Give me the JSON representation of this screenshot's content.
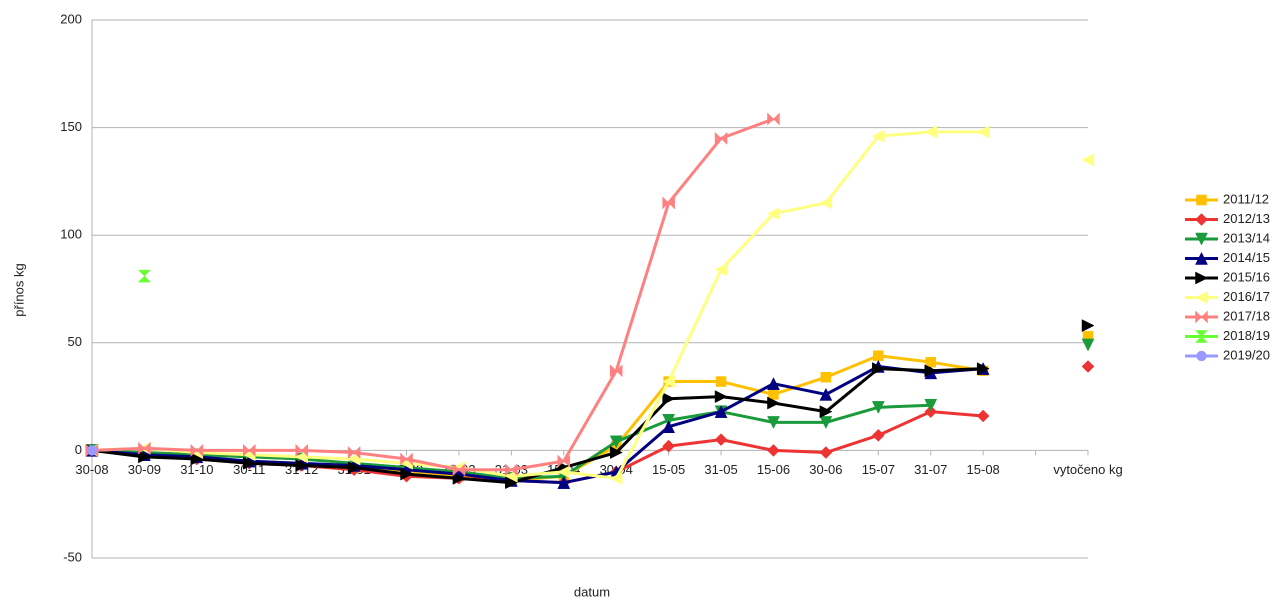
{
  "chart_data": {
    "type": "line",
    "x_label": "datum",
    "y_label": "přínos kg",
    "categories": [
      "30-08",
      "30-09",
      "31-10",
      "30-11",
      "31-12",
      "31-01",
      "28-02",
      "15-03",
      "31-03",
      "15-04",
      "30-04",
      "15-05",
      "31-05",
      "15-06",
      "30-06",
      "15-07",
      "31-07",
      "15-08",
      null,
      "vytočeno kg"
    ],
    "ylim": [
      -50,
      200
    ],
    "yticks": [
      -50,
      0,
      50,
      100,
      150,
      200
    ],
    "grid": true,
    "legend": "right",
    "series": [
      {
        "name": "2011/12",
        "color": "#ffc000",
        "marker": "square",
        "values": [
          0,
          -2,
          -3,
          -5,
          -6,
          -8,
          -10,
          -12,
          -14,
          -12,
          2,
          32,
          32,
          26,
          34,
          44,
          41,
          37,
          null,
          53
        ]
      },
      {
        "name": "2012/13",
        "color": "#ee3333",
        "marker": "diamond",
        "values": [
          0,
          -2,
          -4,
          -6,
          -7,
          -9,
          -12,
          -13,
          -14,
          -15,
          -10,
          2,
          5,
          0,
          -1,
          7,
          18,
          16,
          null,
          39
        ]
      },
      {
        "name": "2013/14",
        "color": "#1a9a3a",
        "marker": "triangle-down",
        "values": [
          0,
          -1,
          -2,
          -3,
          -4,
          -6,
          -8,
          -10,
          -13,
          -12,
          4,
          14,
          18,
          13,
          13,
          20,
          21,
          null,
          null,
          49
        ]
      },
      {
        "name": "2014/15",
        "color": "#000080",
        "marker": "triangle-up",
        "values": [
          0,
          -2,
          -3,
          -5,
          -6,
          -7,
          -9,
          -11,
          -14,
          -15,
          -10,
          11,
          18,
          31,
          26,
          39,
          36,
          38,
          null,
          null
        ]
      },
      {
        "name": "2015/16",
        "color": "#000000",
        "marker": "triangle-right",
        "values": [
          0,
          -3,
          -4,
          -6,
          -7,
          -8,
          -11,
          -13,
          -15,
          -8,
          -1,
          24,
          25,
          22,
          18,
          38,
          37,
          38,
          null,
          58
        ]
      },
      {
        "name": "2016/17",
        "color": "#ffff80",
        "marker": "triangle-left",
        "values": [
          0,
          1,
          -1,
          -2,
          -3,
          -4,
          -6,
          -8,
          -12,
          -10,
          -13,
          32,
          84,
          110,
          115,
          146,
          148,
          148,
          null,
          135
        ]
      },
      {
        "name": "2017/18",
        "color": "#ff8080",
        "marker": "bowtie",
        "values": [
          0,
          1,
          0,
          0,
          0,
          -1,
          -4,
          -9,
          -9,
          -5,
          37,
          115,
          145,
          154,
          null,
          null,
          null,
          null,
          null,
          null
        ]
      },
      {
        "name": "2018/19",
        "color": "#66ff33",
        "marker": "hourglass",
        "values": [
          null,
          81,
          null,
          null,
          null,
          null,
          null,
          null,
          null,
          null,
          null,
          null,
          null,
          null,
          null,
          null,
          null,
          null,
          null,
          null
        ]
      },
      {
        "name": "2019/20",
        "color": "#9999ff",
        "marker": "circle",
        "values": [
          0,
          null,
          null,
          null,
          null,
          null,
          null,
          null,
          null,
          null,
          null,
          null,
          null,
          null,
          null,
          null,
          null,
          null,
          null,
          null
        ]
      }
    ]
  }
}
